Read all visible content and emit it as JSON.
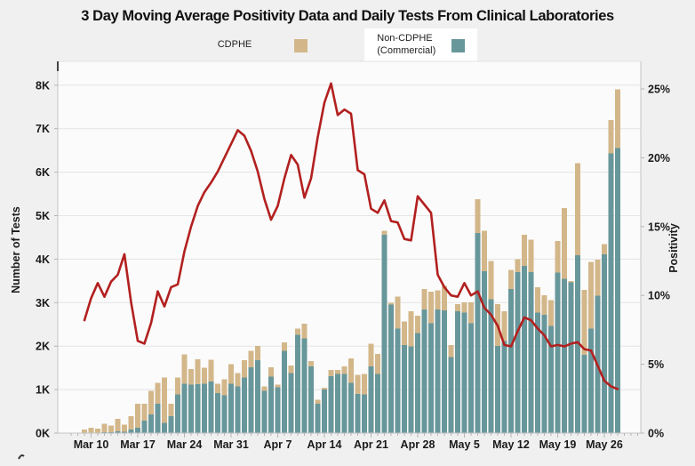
{
  "title": "3 Day Moving Average Positivity Data and Daily Tests From Clinical Laboratories",
  "legend": {
    "items": [
      {
        "label": "CDPHE",
        "color": "#d3b78a"
      },
      {
        "label_line1": "Non-CDPHE",
        "label_line2": "(Commercial)",
        "color": "#68979b"
      }
    ]
  },
  "colors": {
    "page_bg": "#f0f0f0",
    "plot_bg": "#fbfbfb",
    "grid": "#e4e4e4",
    "axis": "#c4c4c4",
    "tick": "#b5b5b5",
    "text": "#1a1a1a",
    "bar_cdphe": "#d3b78a",
    "bar_non_cdphe": "#68979b",
    "line_red": "#b2201f"
  },
  "chart_data": {
    "type": "combo-stacked-bar-line",
    "title": "3 Day Moving Average Positivity Data and Daily Tests From Clinical Laboratories",
    "grid": "horizontal",
    "legend_position": "top",
    "categories": [
      "Mar 9",
      "Mar 10",
      "Mar 11",
      "Mar 12",
      "Mar 13",
      "Mar 14",
      "Mar 15",
      "Mar 16",
      "Mar 17",
      "Mar 18",
      "Mar 19",
      "Mar 20",
      "Mar 21",
      "Mar 22",
      "Mar 23",
      "Mar 24",
      "Mar 25",
      "Mar 26",
      "Mar 27",
      "Mar 28",
      "Mar 29",
      "Mar 30",
      "Mar 31",
      "Apr 1",
      "Apr 2",
      "Apr 3",
      "Apr 4",
      "Apr 5",
      "Apr 6",
      "Apr 7",
      "Apr 8",
      "Apr 9",
      "Apr 10",
      "Apr 11",
      "Apr 12",
      "Apr 13",
      "Apr 14",
      "Apr 15",
      "Apr 16",
      "Apr 17",
      "Apr 18",
      "Apr 19",
      "Apr 20",
      "Apr 21",
      "Apr 22",
      "Apr 23",
      "Apr 24",
      "Apr 25",
      "Apr 26",
      "Apr 27",
      "Apr 28",
      "Apr 29",
      "Apr 30",
      "May 1",
      "May 2",
      "May 3",
      "May 4",
      "May 5",
      "May 6",
      "May 7",
      "May 8",
      "May 9",
      "May 10",
      "May 11",
      "May 12",
      "May 13",
      "May 14",
      "May 15",
      "May 16",
      "May 17",
      "May 18",
      "May 19",
      "May 20",
      "May 21",
      "May 22",
      "May 23",
      "May 24",
      "May 25",
      "May 26",
      "May 27",
      "May 28"
    ],
    "x_tick_labels": [
      "Mar 10",
      "Mar 17",
      "Mar 24",
      "Mar 31",
      "Apr 7",
      "Apr 14",
      "Apr 21",
      "Apr 28",
      "May 5",
      "May 12",
      "May 19",
      "May 26"
    ],
    "left_axis": {
      "label": "Number of Tests",
      "ticks": [
        "0K",
        "1K",
        "2K",
        "3K",
        "4K",
        "5K",
        "6K",
        "7K",
        "8K"
      ],
      "range": [
        0,
        8000
      ]
    },
    "right_axis": {
      "label": "Positivity",
      "ticks": [
        "0%",
        "5%",
        "10%",
        "15%",
        "20%",
        "25%"
      ],
      "range": [
        0,
        25
      ]
    },
    "series": [
      {
        "name": "Non-CDPHE (Commercial)",
        "type": "bar",
        "stack_order": 0,
        "color": "#68979b",
        "axis": "left",
        "values": [
          0,
          10,
          10,
          20,
          20,
          40,
          30,
          80,
          120,
          290,
          430,
          670,
          240,
          390,
          890,
          1130,
          1110,
          1120,
          1130,
          1190,
          920,
          870,
          1140,
          1070,
          1280,
          1510,
          1680,
          970,
          1300,
          1050,
          1890,
          1380,
          2260,
          2180,
          1530,
          670,
          1000,
          1310,
          1360,
          1360,
          1160,
          900,
          890,
          1530,
          1360,
          4560,
          2950,
          2400,
          2020,
          1990,
          2300,
          2840,
          2530,
          2840,
          2820,
          1750,
          2800,
          2770,
          2530,
          4600,
          3720,
          3080,
          2000,
          2120,
          3310,
          3700,
          3840,
          3700,
          2770,
          2720,
          2460,
          3690,
          3550,
          3470,
          4090,
          1800,
          2400,
          3160,
          4110,
          6430,
          6550
        ]
      },
      {
        "name": "CDPHE",
        "type": "bar",
        "stack_order": 1,
        "color": "#d3b78a",
        "axis": "left",
        "values": [
          80,
          110,
          90,
          190,
          150,
          290,
          160,
          310,
          550,
          380,
          540,
          490,
          1040,
          280,
          390,
          680,
          360,
          580,
          370,
          500,
          220,
          370,
          440,
          310,
          400,
          380,
          320,
          100,
          210,
          60,
          200,
          170,
          140,
          340,
          130,
          100,
          40,
          140,
          90,
          170,
          560,
          440,
          470,
          530,
          460,
          90,
          50,
          740,
          550,
          810,
          400,
          470,
          720,
          440,
          560,
          270,
          170,
          240,
          480,
          780,
          930,
          880,
          970,
          680,
          440,
          300,
          720,
          750,
          580,
          450,
          600,
          730,
          1620,
          30,
          2120,
          1490,
          1540,
          830,
          240,
          770,
          1350
        ]
      },
      {
        "name": "3 Day Moving Average Positivity",
        "type": "line",
        "color": "#b2201f",
        "axis": "right",
        "values": [
          8.2,
          9.8,
          10.9,
          9.9,
          11.0,
          11.5,
          13.0,
          9.5,
          6.7,
          6.5,
          8.0,
          10.3,
          9.2,
          10.6,
          10.8,
          13.2,
          15.0,
          16.5,
          17.5,
          18.2,
          19.0,
          20.0,
          21.0,
          22.0,
          21.6,
          20.5,
          19.0,
          17.0,
          15.5,
          16.5,
          18.5,
          20.2,
          19.5,
          17.1,
          18.5,
          21.5,
          24.0,
          25.4,
          23.1,
          23.5,
          23.2,
          19.1,
          18.8,
          16.3,
          16.0,
          16.9,
          15.4,
          15.3,
          14.1,
          14.0,
          17.2,
          16.6,
          16.0,
          11.5,
          10.6,
          10.0,
          9.9,
          10.9,
          10.0,
          10.3,
          9.1,
          8.6,
          7.8,
          6.4,
          6.3,
          7.4,
          8.4,
          8.2,
          7.6,
          7.1,
          6.3,
          6.4,
          6.3,
          6.5,
          6.6,
          6.1,
          6.0,
          4.9,
          3.8,
          3.4,
          3.2
        ]
      }
    ]
  }
}
